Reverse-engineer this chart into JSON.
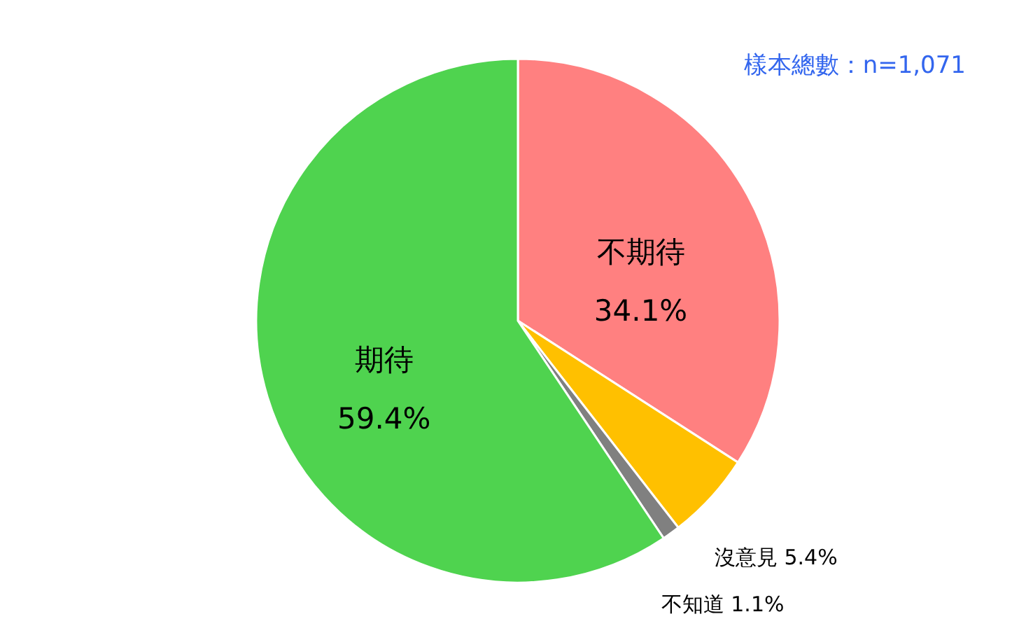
{
  "chart_data": {
    "type": "pie",
    "categories": [
      "不期待",
      "沒意見",
      "不知道",
      "期待"
    ],
    "values": [
      34.1,
      5.4,
      1.1,
      59.4
    ],
    "colors": [
      "#ff8080",
      "#ffc000",
      "#808080",
      "#4fd34f"
    ],
    "value_labels": [
      "34.1%",
      "5.4%",
      "1.1%",
      "59.4%"
    ],
    "annotations": [
      "樣本總數：n=1,071"
    ]
  }
}
